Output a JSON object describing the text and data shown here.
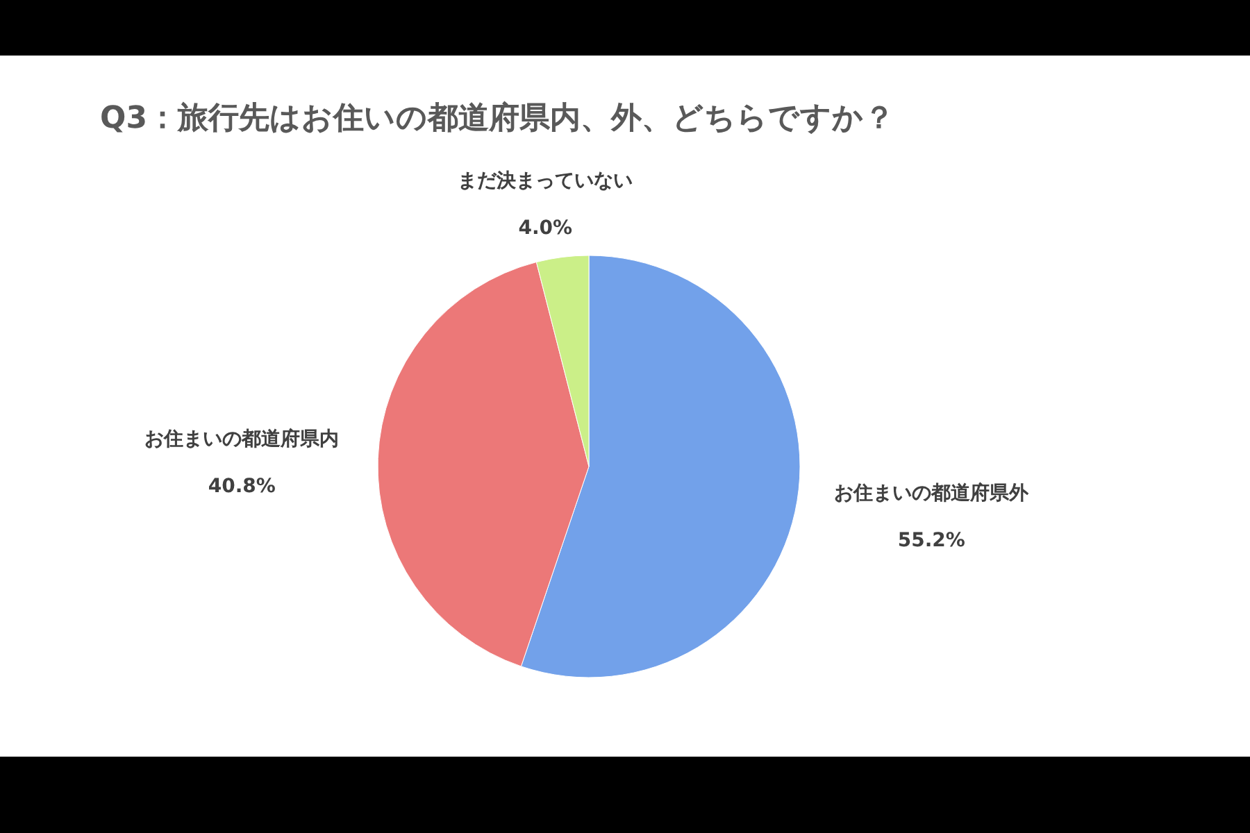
{
  "chart_data": {
    "type": "pie",
    "title": "Q3：旅行先はお住いの都道府県内、外、どちらですか？",
    "categories": [
      "お住まいの都道府県外",
      "お住まいの都道府県内",
      "まだ決まっていない"
    ],
    "values": [
      55.2,
      40.8,
      4.0
    ],
    "value_labels": [
      "55.2%",
      "40.8%",
      "4.0%"
    ],
    "colors": [
      "#72a1ea",
      "#ec7878",
      "#cbef88"
    ]
  }
}
